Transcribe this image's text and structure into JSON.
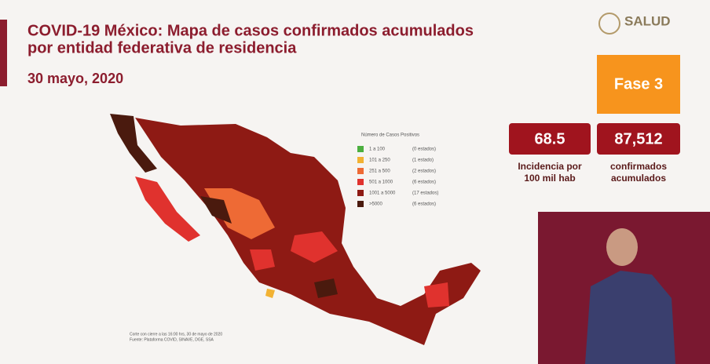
{
  "header": {
    "title_line1": "COVID-19 México: Mapa de casos confirmados acumulados",
    "title_line2": "por entidad federativa de residencia",
    "date": "30 mayo, 2020"
  },
  "logo": {
    "text": "SALUD"
  },
  "phase": {
    "label": "Fase 3"
  },
  "stats": [
    {
      "value": "68.5",
      "label_line1": "Incidencia por",
      "label_line2": "100 mil hab"
    },
    {
      "value": "87,512",
      "label_line1": "confirmados",
      "label_line2": "acumulados"
    }
  ],
  "legend": {
    "title": "Número de Casos Positivos",
    "items": [
      {
        "range": "1 a 100",
        "states": "(0 estados)",
        "color": "#4caf3f"
      },
      {
        "range": "101 a 250",
        "states": "(1 estado)",
        "color": "#f2b233"
      },
      {
        "range": "251 a 500",
        "states": "(2 estados)",
        "color": "#ee6a35"
      },
      {
        "range": "501 a 1000",
        "states": "(6 estados)",
        "color": "#e0322e"
      },
      {
        "range": "1001 a 5000",
        "states": "(17 estados)",
        "color": "#8e1a14"
      },
      {
        "range": ">5000",
        "states": "(6 estados)",
        "color": "#4a1a0e"
      }
    ]
  },
  "source": {
    "line1": "Corte con cierre a las 16:00 hrs, 30 de mayo de 2020",
    "line2": "Fuente: Plataforma COVID, SINAVE, DGE, SSA"
  }
}
